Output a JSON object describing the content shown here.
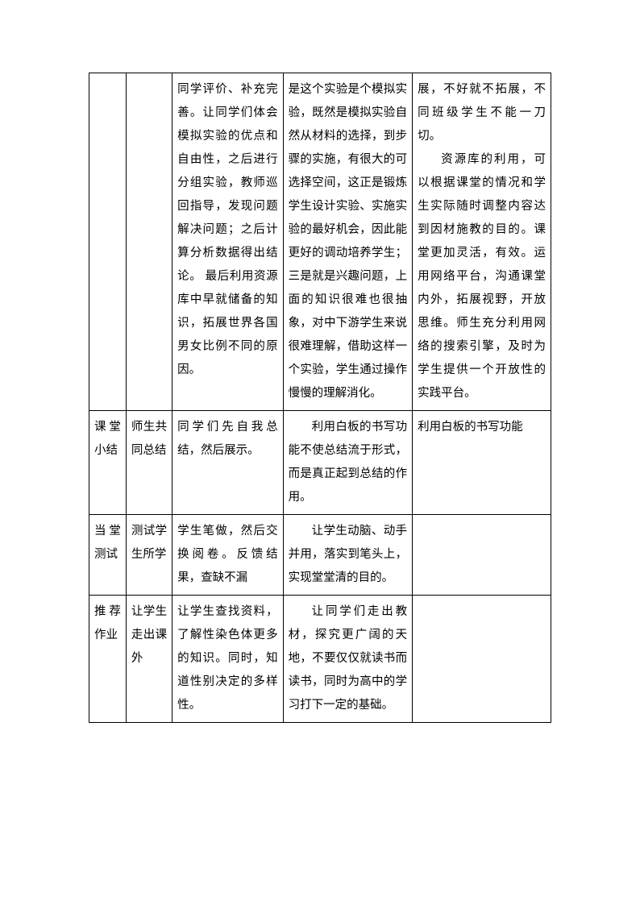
{
  "table": {
    "rows": [
      {
        "c1": "",
        "c2": "",
        "c3": "同学评价、补充完善。让同学们体会模拟实验的优点和自由性，之后进行分组实验，教师巡回指导，发现问题解决问题；之后计算分析数据得出结论。\n最后利用资源库中早就储备的知识，拓展世界各国男女比例不同的原因。",
        "c4": "是这个实验是个模拟实验，既然是模拟实验自然从材料的选择，到步骤的实施，有很大的可选择空间，这正是锻炼学生设计实验、实施实验的最好机会，因此能更好的调动培养学生；三是就是兴趣问题，上面的知识很难也很抽象，对中下游学生来说很难理解，借助这样一个实验，学生通过操作慢慢的理解消化。",
        "c5_p1": "展，不好就不拓展，不同班级学生不能一刀切。",
        "c5_p2": "资源库的利用，可以根据课堂的情况和学生实际随时调整内容达到因材施教的目的。课堂更加灵活，有效。运用网络平台，沟通课堂内外，拓展视野，开放思维。师生充分利用网络的搜索引擎，及时为学生提供一个开放性的实践平台。"
      },
      {
        "c1": "课堂小结",
        "c2": "师生共同总结",
        "c3": "同学们先自我总结，然后展示。",
        "c4": "利用白板的书写功能不使总结流于形式，而是真正起到总结的作用。",
        "c5": "利用白板的书写功能"
      },
      {
        "c1": "当堂测试",
        "c2": "测试学生所学",
        "c3": "学生笔做，然后交换阅卷。反馈结果，查缺不漏",
        "c4": "让学生动脑、动手并用，落实到笔头上，实现堂堂清的目的。",
        "c5": ""
      },
      {
        "c1": "推荐作业",
        "c2": "让学生走出课外",
        "c3": "让学生查找资料，了解性染色体更多的知识。同时，知道性别决定的多样性。",
        "c4": "让同学们走出教材，探究更广阔的天地，不要仅仅就读书而读书，同时为高中的学习打下一定的基础。",
        "c5": ""
      }
    ]
  }
}
